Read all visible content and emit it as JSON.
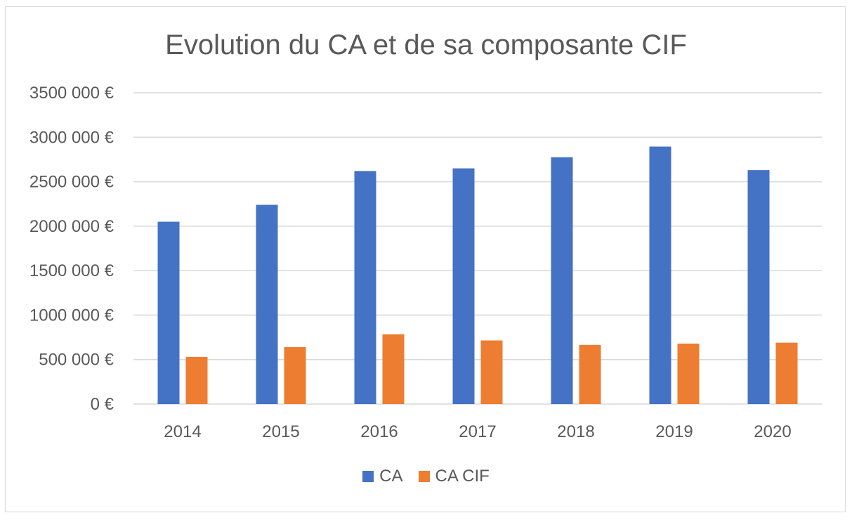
{
  "chart_data": {
    "type": "bar",
    "title": "Evolution du CA et de sa composante CIF",
    "xlabel": "",
    "ylabel": "",
    "categories": [
      "2014",
      "2015",
      "2016",
      "2017",
      "2018",
      "2019",
      "2020"
    ],
    "series": [
      {
        "name": "CA",
        "color": "#4472c4",
        "values": [
          2050000,
          2240000,
          2620000,
          2650000,
          2775000,
          2895000,
          2630000
        ]
      },
      {
        "name": "CA CIF",
        "color": "#ed7d31",
        "values": [
          530000,
          640000,
          785000,
          715000,
          665000,
          680000,
          690000
        ]
      }
    ],
    "ylim": [
      0,
      3500000
    ],
    "yticks": [
      0,
      500000,
      1000000,
      1500000,
      2000000,
      2500000,
      3000000,
      3500000
    ],
    "ytick_labels": [
      "0 €",
      "500 000 €",
      "1000 000 €",
      "1500 000 €",
      "2000 000 €",
      "2500 000 €",
      "3000 000 €",
      "3500 000 €"
    ],
    "grid": true,
    "legend_position": "bottom",
    "gridline_color": "#d9d9d9"
  }
}
